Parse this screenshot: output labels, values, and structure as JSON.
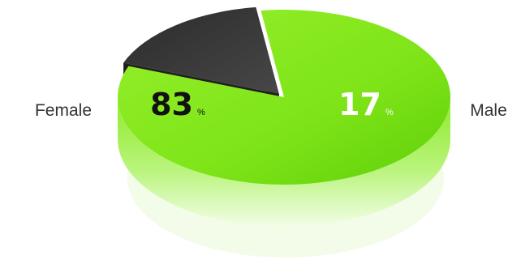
{
  "chart_data": {
    "type": "pie",
    "title": "",
    "slices": [
      {
        "label": "Female",
        "value": 83,
        "unit": "%",
        "color": "#7fe61a"
      },
      {
        "label": "Male",
        "value": 17,
        "unit": "%",
        "color": "#3a3a3a"
      }
    ]
  }
}
